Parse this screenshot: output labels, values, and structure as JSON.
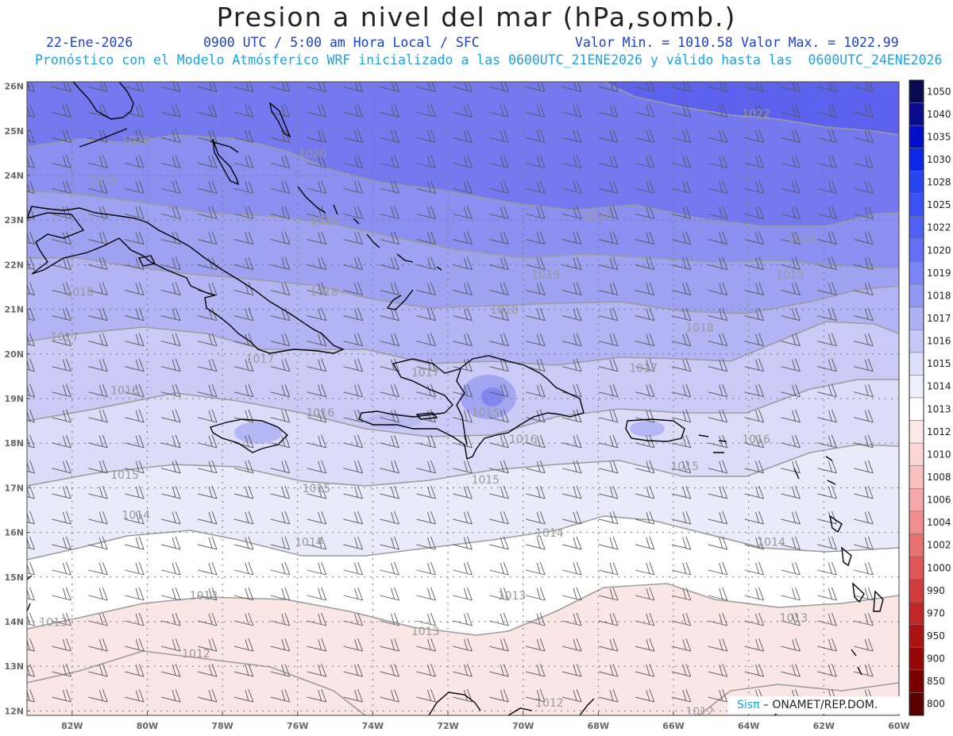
{
  "header": {
    "title": "Presion a nivel del mar (hPa,somb.)",
    "date": "22-Ene-2026",
    "time_label": "0900 UTC / 5:00 am Hora Local / SFC",
    "min_label": "Valor Min. = 1010.58",
    "max_label": "Valor Max. = 1022.99",
    "forecast_line": "Pronóstico con el Modelo Atmósferico WRF inicializado a las 0600UTC_21ENE2026 y válido hasta las  0600UTC_24ENE2026"
  },
  "map": {
    "lon_range": [
      -83.2,
      -60
    ],
    "lat_range": [
      11.9,
      26.1
    ],
    "lat_ticks": [
      "12N",
      "13N",
      "14N",
      "15N",
      "16N",
      "17N",
      "18N",
      "19N",
      "20N",
      "21N",
      "22N",
      "23N",
      "24N",
      "25N",
      "26N"
    ],
    "lon_ticks": [
      "82W",
      "80W",
      "78W",
      "76W",
      "74W",
      "72W",
      "70W",
      "68W",
      "66W",
      "64W",
      "62W",
      "60W"
    ],
    "contour_labels": [
      {
        "text": "1022",
        "lon": -63.8,
        "lat": 25.3
      },
      {
        "text": "1020",
        "lon": -80.3,
        "lat": 24.7
      },
      {
        "text": "1020",
        "lon": -75.6,
        "lat": 24.4
      },
      {
        "text": "1020",
        "lon": -68.0,
        "lat": 23.0
      },
      {
        "text": "1020",
        "lon": -62.6,
        "lat": 22.5
      },
      {
        "text": "1019",
        "lon": -81.2,
        "lat": 23.8
      },
      {
        "text": "1019",
        "lon": -75.3,
        "lat": 22.9
      },
      {
        "text": "1019",
        "lon": -69.4,
        "lat": 21.7
      },
      {
        "text": "1019",
        "lon": -62.9,
        "lat": 21.7
      },
      {
        "text": "1018",
        "lon": -81.8,
        "lat": 21.3
      },
      {
        "text": "1018",
        "lon": -75.3,
        "lat": 21.3
      },
      {
        "text": "1018",
        "lon": -70.5,
        "lat": 20.9
      },
      {
        "text": "1018",
        "lon": -65.3,
        "lat": 20.5
      },
      {
        "text": "1017",
        "lon": -82.2,
        "lat": 20.3
      },
      {
        "text": "1017",
        "lon": -77.0,
        "lat": 19.8
      },
      {
        "text": "1017",
        "lon": -72.6,
        "lat": 19.5
      },
      {
        "text": "1017",
        "lon": -66.8,
        "lat": 19.6
      },
      {
        "text": "1016",
        "lon": -80.6,
        "lat": 19.1
      },
      {
        "text": "1016",
        "lon": -75.4,
        "lat": 18.6
      },
      {
        "text": "1016",
        "lon": -70.0,
        "lat": 18.0
      },
      {
        "text": "1016",
        "lon": -63.8,
        "lat": 18.0
      },
      {
        "text": "1015",
        "lon": -71.0,
        "lat": 18.6
      },
      {
        "text": "1015",
        "lon": -80.6,
        "lat": 17.2
      },
      {
        "text": "1015",
        "lon": -75.5,
        "lat": 16.9
      },
      {
        "text": "1015",
        "lon": -71.0,
        "lat": 17.1
      },
      {
        "text": "1015",
        "lon": -65.7,
        "lat": 17.4
      },
      {
        "text": "1014",
        "lon": -80.3,
        "lat": 16.3
      },
      {
        "text": "1014",
        "lon": -75.7,
        "lat": 15.7
      },
      {
        "text": "1014",
        "lon": -69.3,
        "lat": 15.9
      },
      {
        "text": "1014",
        "lon": -63.4,
        "lat": 15.7
      },
      {
        "text": "1013",
        "lon": -78.5,
        "lat": 14.5
      },
      {
        "text": "1013",
        "lon": -70.3,
        "lat": 14.5
      },
      {
        "text": "1013",
        "lon": -82.5,
        "lat": 13.9
      },
      {
        "text": "1013",
        "lon": -72.6,
        "lat": 13.7
      },
      {
        "text": "1013",
        "lon": -62.8,
        "lat": 14.0
      },
      {
        "text": "1012",
        "lon": -78.7,
        "lat": 13.2
      },
      {
        "text": "1012",
        "lon": -69.3,
        "lat": 12.1
      },
      {
        "text": "1012",
        "lon": -65.3,
        "lat": 11.9
      }
    ]
  },
  "colorbar": {
    "levels": [
      "1050",
      "1040",
      "1035",
      "1030",
      "1028",
      "1025",
      "1022",
      "1020",
      "1019",
      "1018",
      "1017",
      "1016",
      "1015",
      "1014",
      "1013",
      "1012",
      "1010",
      "1008",
      "1006",
      "1004",
      "1002",
      "1000",
      "990",
      "970",
      "950",
      "900",
      "850",
      "800"
    ],
    "colors": [
      "#0a0a50",
      "#0a0a8c",
      "#0010c8",
      "#0a28e6",
      "#2846f0",
      "#3c50f5",
      "#5060f5",
      "#6470f5",
      "#7a86f5",
      "#9298f5",
      "#aeb2f5",
      "#c6c8f7",
      "#dcdefa",
      "#eeeefc",
      "#ffffff",
      "#fde8e8",
      "#fcd6d6",
      "#f9c0c0",
      "#f5a8a8",
      "#f08e8e",
      "#e87272",
      "#de5656",
      "#d03c3c",
      "#c02626",
      "#ac1414",
      "#960808",
      "#7a0000",
      "#5a0000"
    ]
  },
  "credit": {
    "sis": "Sisπ",
    "text": "– ONAMET/REP.DOM."
  }
}
